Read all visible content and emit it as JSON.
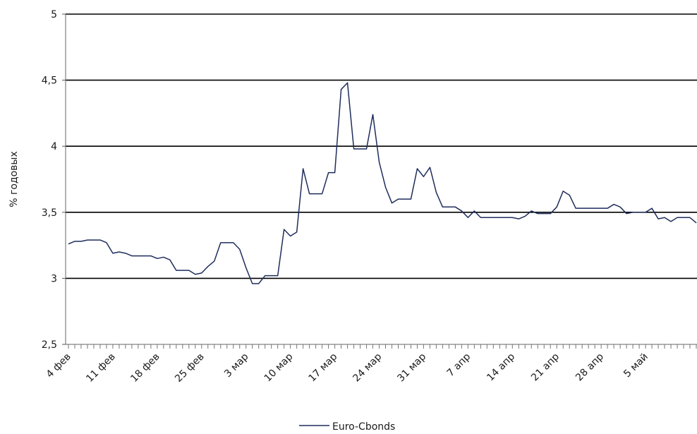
{
  "chart_data": {
    "type": "line",
    "title": "",
    "xlabel": "",
    "ylabel": "% годовых",
    "ylim": [
      2.5,
      5
    ],
    "yticks": [
      "2,5",
      "3",
      "3,5",
      "4",
      "4,5",
      "5"
    ],
    "grid": true,
    "legend_position": "bottom",
    "line_color": "#1f2d5c",
    "x_tick_labels": [
      "4 фев",
      "11 фев",
      "18 фев",
      "25 фев",
      "3 мар",
      "10 мар",
      "17 мар",
      "24 мар",
      "31 мар",
      "7 апр",
      "14 апр",
      "21 апр",
      "28 апр",
      "5 май"
    ],
    "series": [
      {
        "name": "Euro-Cbonds",
        "values": [
          3.26,
          3.28,
          3.28,
          3.29,
          3.29,
          3.29,
          3.27,
          3.19,
          3.2,
          3.19,
          3.17,
          3.17,
          3.17,
          3.17,
          3.15,
          3.16,
          3.14,
          3.06,
          3.06,
          3.06,
          3.03,
          3.04,
          3.09,
          3.13,
          3.27,
          3.27,
          3.27,
          3.22,
          3.08,
          2.96,
          2.96,
          3.02,
          3.02,
          3.02,
          3.37,
          3.32,
          3.35,
          3.83,
          3.64,
          3.64,
          3.64,
          3.8,
          3.8,
          4.43,
          4.48,
          3.98,
          3.98,
          3.98,
          4.24,
          3.88,
          3.69,
          3.57,
          3.6,
          3.6,
          3.6,
          3.83,
          3.77,
          3.84,
          3.65,
          3.54,
          3.54,
          3.54,
          3.51,
          3.46,
          3.51,
          3.46,
          3.46,
          3.46,
          3.46,
          3.46,
          3.46,
          3.45,
          3.47,
          3.51,
          3.49,
          3.49,
          3.49,
          3.54,
          3.66,
          3.63,
          3.53,
          3.53,
          3.53,
          3.53,
          3.53,
          3.53,
          3.56,
          3.54,
          3.49,
          3.5,
          3.5,
          3.5,
          3.53,
          3.45,
          3.46,
          3.43,
          3.46,
          3.46,
          3.46,
          3.42
        ]
      }
    ]
  }
}
